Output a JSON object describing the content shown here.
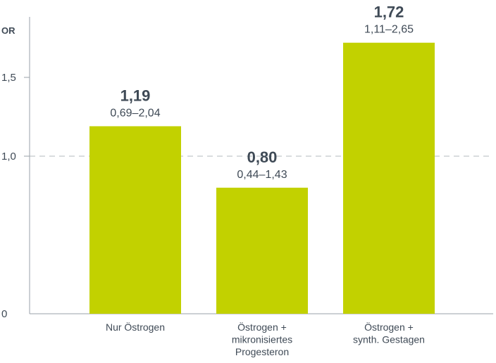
{
  "chart_data": {
    "type": "bar",
    "ylabel": "OR",
    "ylim": [
      0,
      1.9
    ],
    "yticks": [
      {
        "value": 0,
        "label": "0"
      },
      {
        "value": 1.0,
        "label": "1,0"
      },
      {
        "value": 1.5,
        "label": "1,5"
      }
    ],
    "reference_line": 1.0,
    "grid": false,
    "bar_color": "#c2d100",
    "axis_color": "#9aa1a8",
    "text_color": "#3f4a56",
    "categories": [
      [
        "Nur Östrogen"
      ],
      [
        "Östrogen +",
        "mikronisiertes",
        "Progesteron"
      ],
      [
        "Östrogen +",
        "synth. Gestagen"
      ]
    ],
    "values": [
      1.19,
      0.8,
      1.72
    ],
    "value_labels": [
      "1,19",
      "0,80",
      "1,72"
    ],
    "ci_labels": [
      "0,69–2,04",
      "0,44–1,43",
      "1,11–2,65"
    ]
  }
}
